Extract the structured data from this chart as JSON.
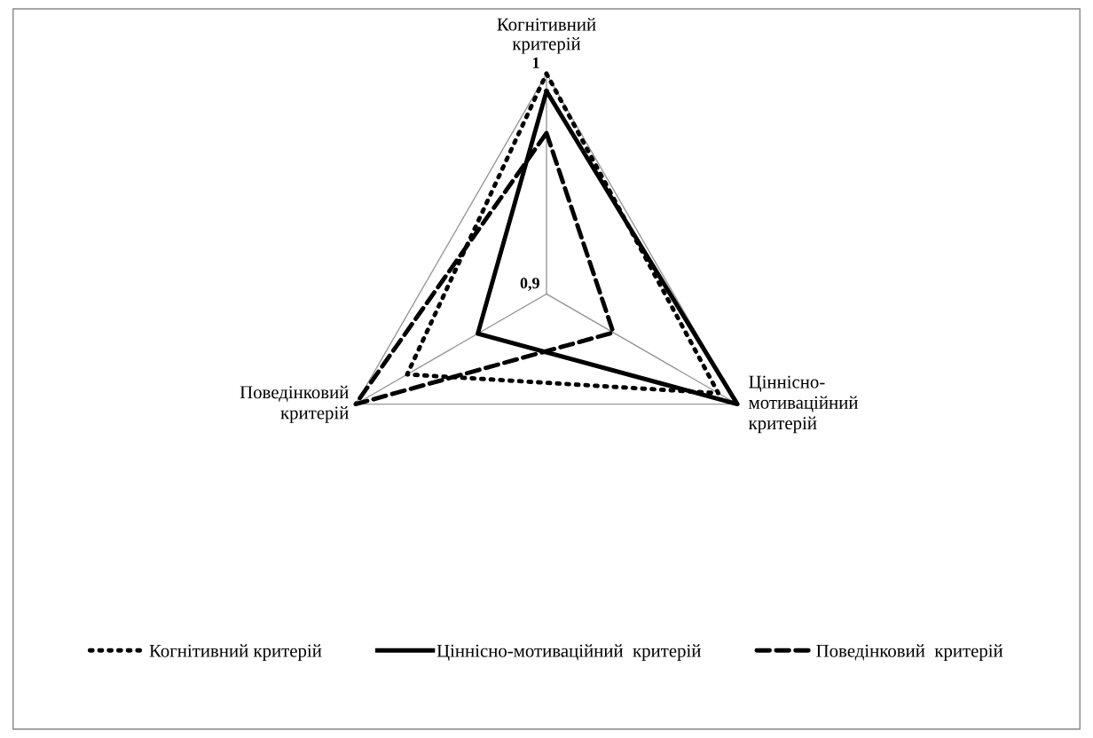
{
  "chart_data": {
    "type": "radar",
    "categories": [
      "Когнітивний\nкритерій",
      "Ціннісно-\nмотиваційний\nкритерій",
      "Поведінковий\nкритерій"
    ],
    "ylim": [
      0.9,
      1
    ],
    "yticks": [
      {
        "value": 0.9,
        "label": "0,9"
      },
      {
        "value": 1,
        "label": "1"
      }
    ],
    "grid": true,
    "legend": "bottom",
    "series": [
      {
        "name": "Когнітивний критерій",
        "color": "#000000",
        "line_style": "dotted",
        "values": [
          1.0,
          0.99,
          0.973
        ]
      },
      {
        "name": "Ціннісно-мотиваційний  критерій",
        "color": "#000000",
        "line_style": "solid",
        "values": [
          0.992,
          1.0,
          0.936
        ]
      },
      {
        "name": "Поведінковий  критерій",
        "color": "#000000",
        "line_style": "dashed",
        "values": [
          0.973,
          0.935,
          1.0
        ]
      }
    ]
  }
}
